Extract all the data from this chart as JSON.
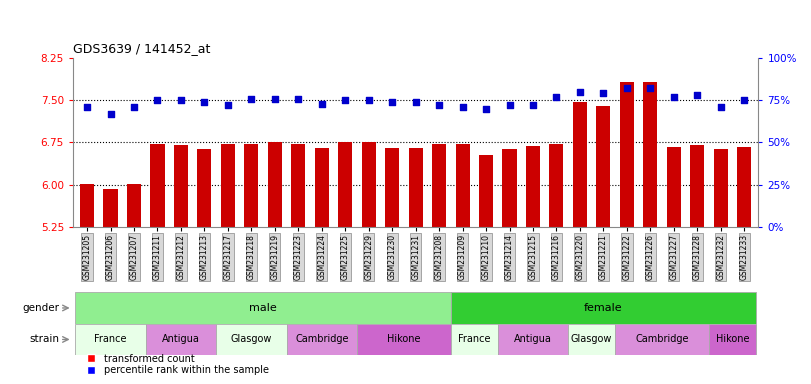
{
  "title": "GDS3639 / 141452_at",
  "samples": [
    "GSM231205",
    "GSM231206",
    "GSM231207",
    "GSM231211",
    "GSM231212",
    "GSM231213",
    "GSM231217",
    "GSM231218",
    "GSM231219",
    "GSM231223",
    "GSM231224",
    "GSM231225",
    "GSM231229",
    "GSM231230",
    "GSM231231",
    "GSM231208",
    "GSM231209",
    "GSM231210",
    "GSM231214",
    "GSM231215",
    "GSM231216",
    "GSM231220",
    "GSM231221",
    "GSM231222",
    "GSM231226",
    "GSM231227",
    "GSM231228",
    "GSM231232",
    "GSM231233"
  ],
  "bar_values": [
    6.02,
    5.92,
    6.02,
    6.72,
    6.71,
    6.63,
    6.72,
    6.72,
    6.75,
    6.72,
    6.65,
    6.75,
    6.75,
    6.65,
    6.65,
    6.72,
    6.72,
    6.52,
    6.64,
    6.68,
    6.72,
    7.47,
    7.4,
    7.82,
    7.82,
    6.67,
    6.7,
    6.64,
    6.67
  ],
  "blue_pct": [
    71,
    67,
    71,
    75,
    75,
    74,
    72,
    76,
    76,
    76,
    73,
    75,
    75,
    74,
    74,
    72,
    71,
    70,
    72,
    72,
    77,
    80,
    79,
    82,
    82,
    77,
    78,
    71,
    75
  ],
  "gender": [
    "male",
    "male",
    "male",
    "male",
    "male",
    "male",
    "male",
    "male",
    "male",
    "male",
    "male",
    "male",
    "male",
    "male",
    "male",
    "male",
    "female",
    "female",
    "female",
    "female",
    "female",
    "female",
    "female",
    "female",
    "female",
    "female",
    "female",
    "female",
    "female"
  ],
  "strain": [
    "France",
    "France",
    "France",
    "Antigua",
    "Antigua",
    "Antigua",
    "Glasgow",
    "Glasgow",
    "Glasgow",
    "Cambridge",
    "Cambridge",
    "Cambridge",
    "Hikone",
    "Hikone",
    "Hikone",
    "Hikone",
    "France",
    "France",
    "Antigua",
    "Antigua",
    "Antigua",
    "Glasgow",
    "Glasgow",
    "Cambridge",
    "Cambridge",
    "Cambridge",
    "Cambridge",
    "Hikone",
    "Hikone"
  ],
  "bar_color": "#cc0000",
  "dot_color": "#0000cc",
  "ylim_left": [
    5.25,
    8.25
  ],
  "ylim_right": [
    0,
    100
  ],
  "yticks_left": [
    5.25,
    6.0,
    6.75,
    7.5,
    8.25
  ],
  "yticks_right": [
    0,
    25,
    50,
    75,
    100
  ],
  "hgrid_vals": [
    6.0,
    6.75,
    7.5
  ],
  "gender_color_male": "#90EE90",
  "gender_color_female": "#32CD32",
  "strain_colors": {
    "France": "#e8ffe8",
    "Antigua": "#da8fda",
    "Glasgow": "#e8ffe8",
    "Cambridge": "#da8fda",
    "Hikone": "#cc66cc"
  },
  "xlim": [
    -0.6,
    28.6
  ],
  "bar_width": 0.6,
  "legend_labels": [
    "transformed count",
    "percentile rank within the sample"
  ]
}
